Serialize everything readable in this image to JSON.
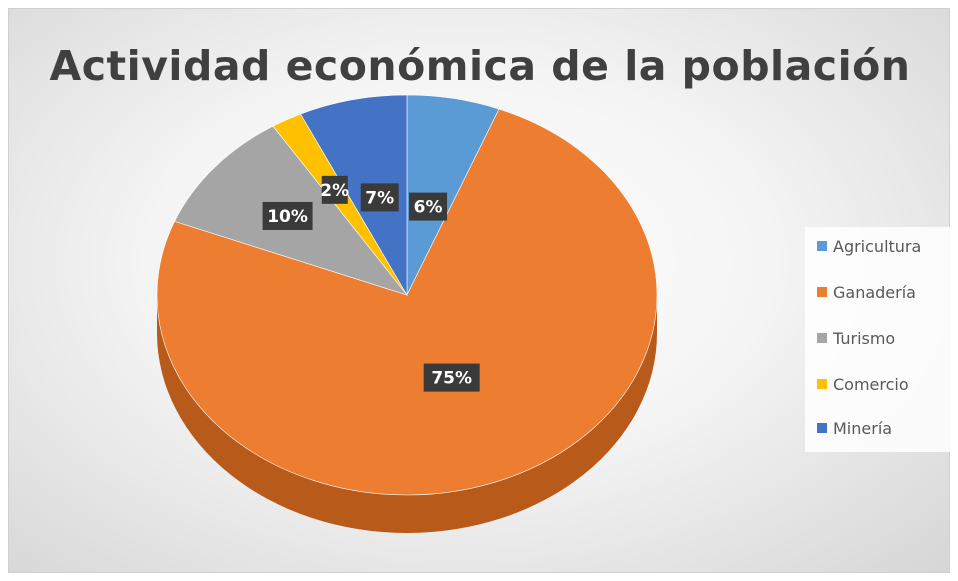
{
  "chart_data": {
    "type": "pie",
    "title": "Actividad económica de la población",
    "categories": [
      "Agricultura",
      "Ganadería",
      "Turismo",
      "Comercio",
      "Minería"
    ],
    "values": [
      6,
      75,
      10,
      2,
      7
    ],
    "labels": [
      "6%",
      "75%",
      "10%",
      "2%",
      "7%"
    ],
    "colors": [
      "#5b9bd5",
      "#ed7d31",
      "#a5a5a5",
      "#ffc000",
      "#4472c4"
    ],
    "side_colors": [
      "#3a75b0",
      "#b85a1a",
      "#7b7b7b",
      "#bf8f00",
      "#2b4f96"
    ],
    "legend_position": "right",
    "style": "3d"
  }
}
